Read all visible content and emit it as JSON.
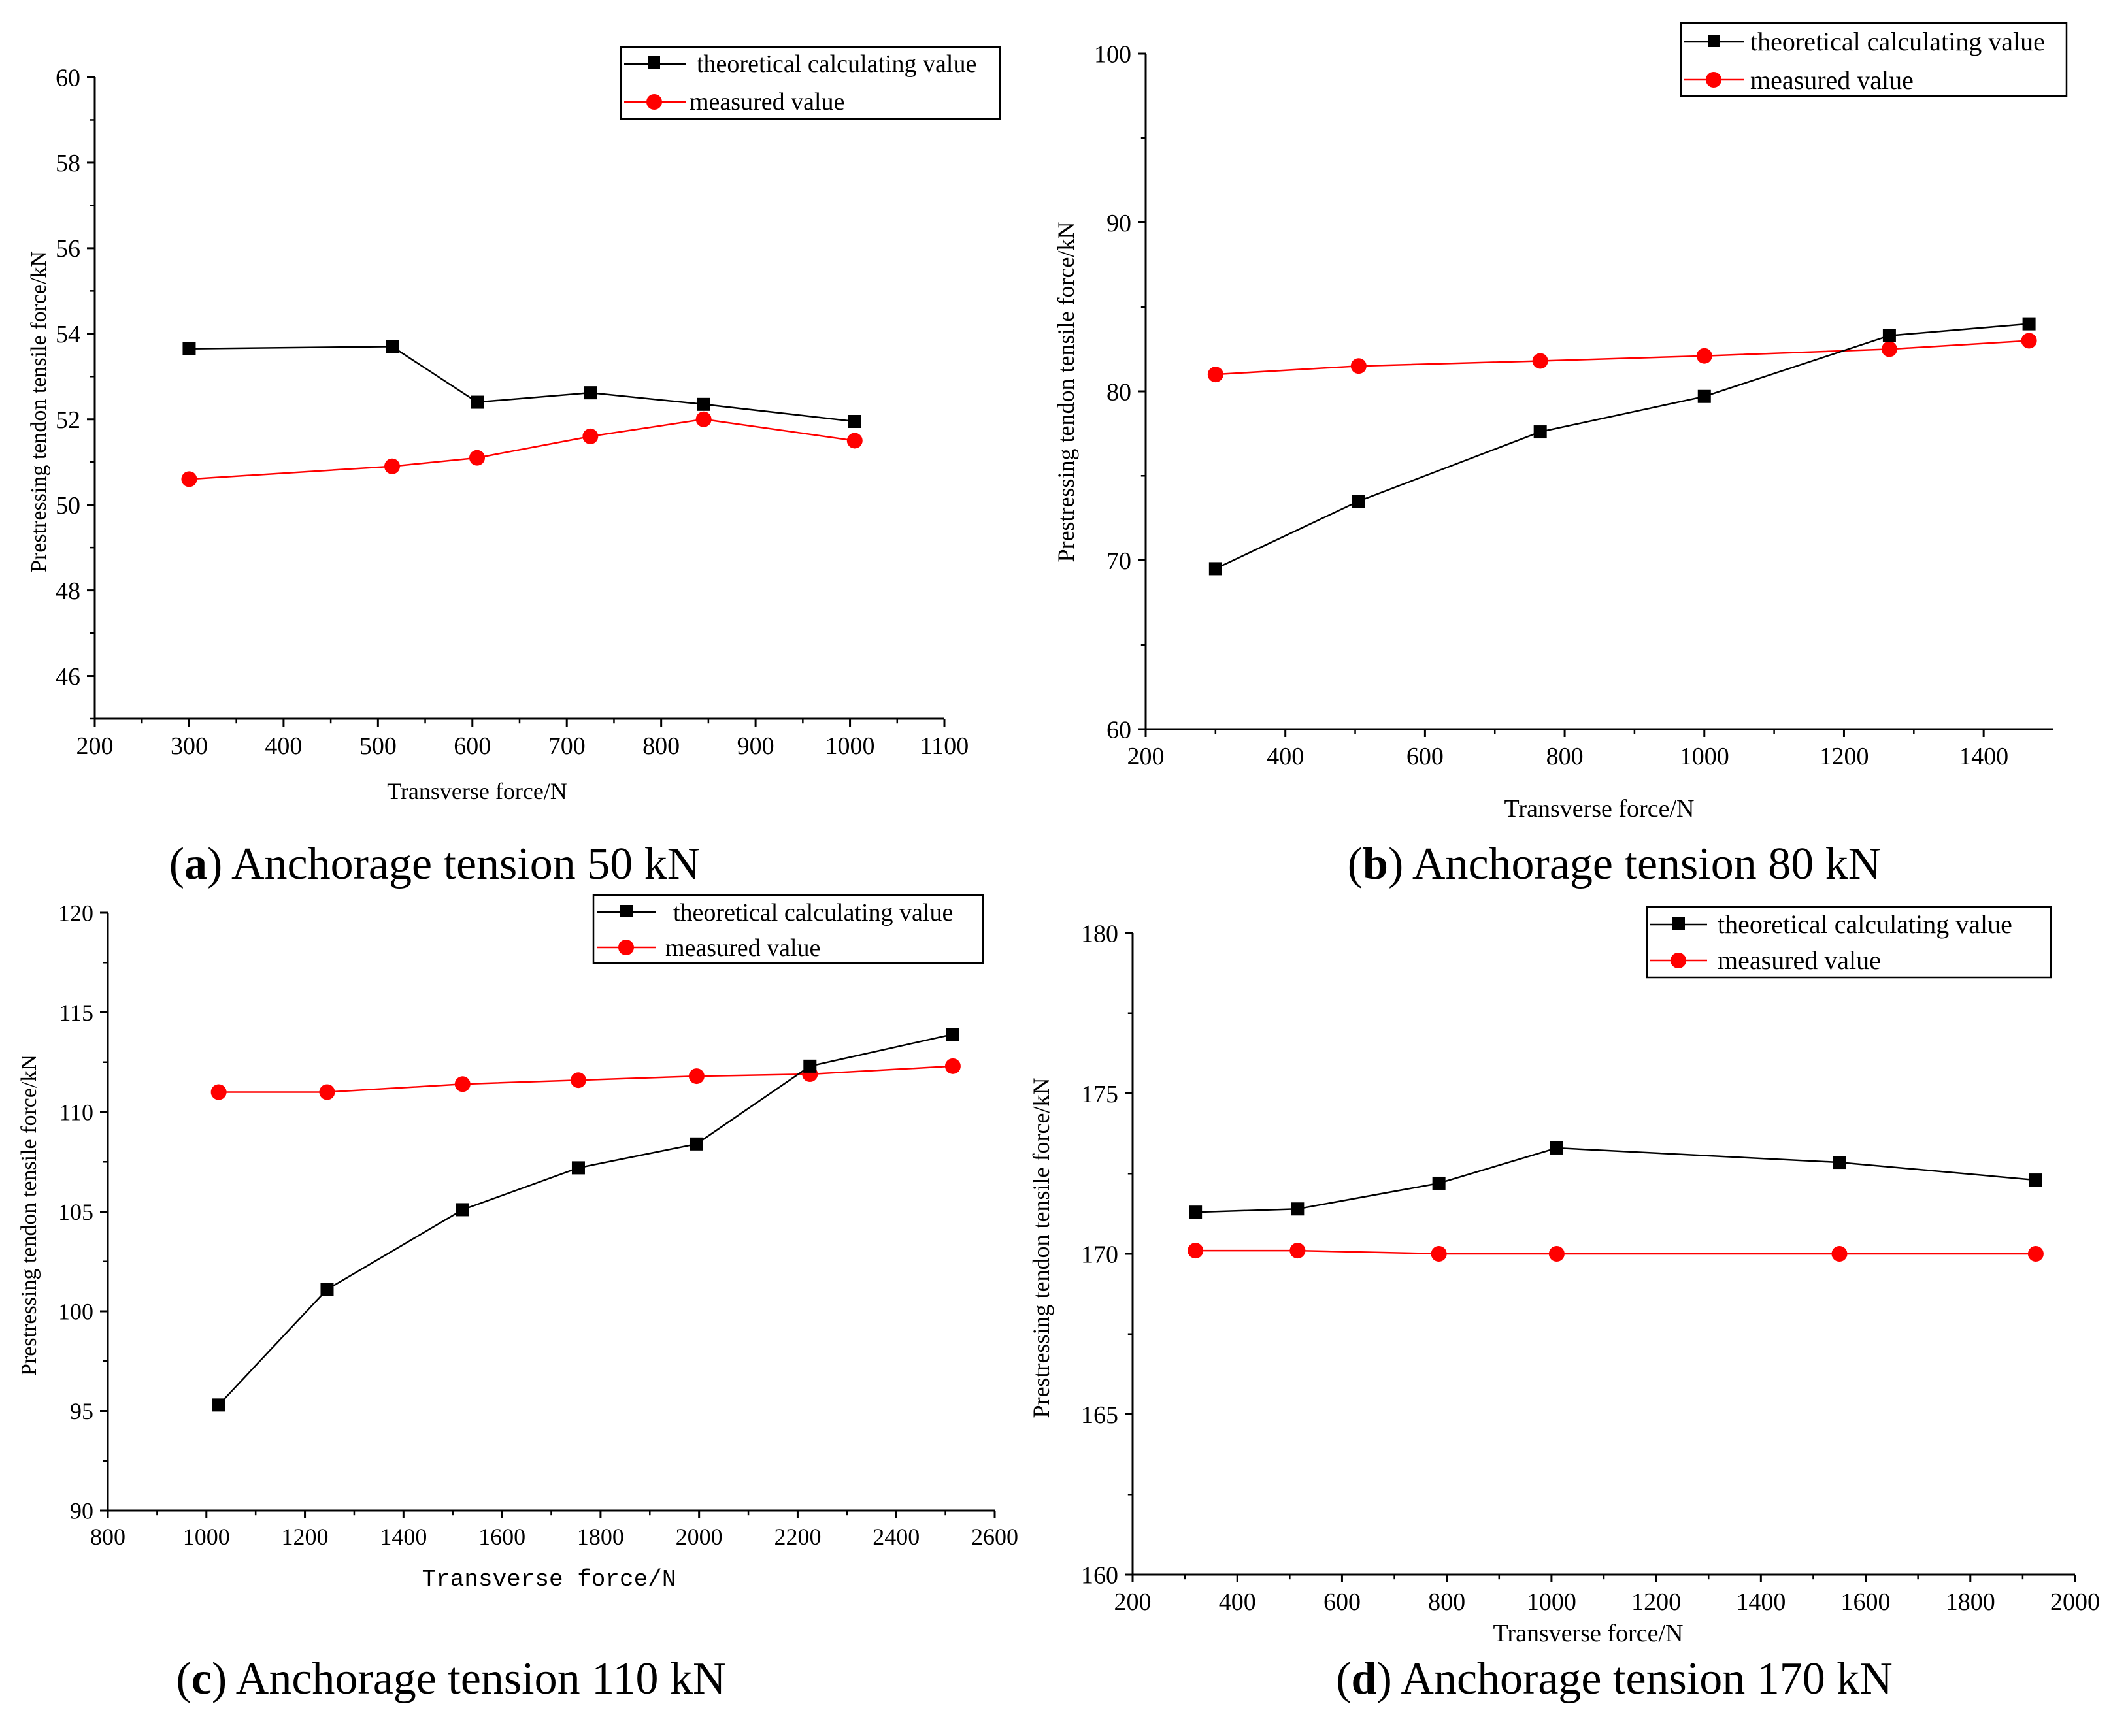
{
  "colors": {
    "theoretical": "#000000",
    "measured": "#ff0000",
    "axis": "#000000",
    "background": "#ffffff"
  },
  "chart_data": [
    {
      "type": "line",
      "panel_label": "a",
      "caption": "Anchorage tension 50 kN",
      "xlabel": "Transverse force/N",
      "ylabel": "Prestressing tendon tensile force/kN",
      "xlim": [
        200,
        1100
      ],
      "ylim": [
        45,
        60
      ],
      "xticks": [
        200,
        300,
        400,
        500,
        600,
        700,
        800,
        900,
        1000,
        1100
      ],
      "yticks": [
        46,
        48,
        50,
        52,
        54,
        56,
        58,
        60
      ],
      "legend_position": "top-right",
      "series": [
        {
          "name": "theoretical calculating value",
          "marker": "square",
          "color": "#000000",
          "x": [
            300,
            515,
            605,
            725,
            845,
            1005
          ],
          "y": [
            53.65,
            53.7,
            52.4,
            52.62,
            52.35,
            51.95
          ]
        },
        {
          "name": "measured value",
          "marker": "circle",
          "color": "#ff0000",
          "x": [
            300,
            515,
            605,
            725,
            845,
            1005
          ],
          "y": [
            50.6,
            50.9,
            51.1,
            51.6,
            52.0,
            51.5
          ]
        }
      ]
    },
    {
      "type": "line",
      "panel_label": "b",
      "caption": "Anchorage tension 80 kN",
      "xlabel": "Transverse force/N",
      "ylabel": "Prestressing tendon tensile force/kN",
      "xlim": [
        200,
        1500
      ],
      "ylim": [
        60,
        100
      ],
      "xticks": [
        200,
        400,
        600,
        800,
        1000,
        1200,
        1400
      ],
      "yticks": [
        60,
        70,
        80,
        90,
        100
      ],
      "legend_position": "top-right",
      "series": [
        {
          "name": "theoretical calculating value",
          "marker": "square",
          "color": "#000000",
          "x": [
            300,
            505,
            765,
            1000,
            1265,
            1465
          ],
          "y": [
            69.5,
            73.5,
            77.6,
            79.7,
            83.3,
            84.0
          ]
        },
        {
          "name": "measured value",
          "marker": "circle",
          "color": "#ff0000",
          "x": [
            300,
            505,
            765,
            1000,
            1265,
            1465
          ],
          "y": [
            81.0,
            81.5,
            81.8,
            82.1,
            82.5,
            83.0
          ]
        }
      ]
    },
    {
      "type": "line",
      "panel_label": "c",
      "caption": "Anchorage tension 110 kN",
      "xlabel": "Transverse force/N",
      "ylabel": "Prestressing tendon tensile force/kN",
      "xlim": [
        800,
        2600
      ],
      "ylim": [
        90,
        120
      ],
      "xticks": [
        800,
        1000,
        1200,
        1400,
        1600,
        1800,
        2000,
        2200,
        2400,
        2600
      ],
      "yticks": [
        90,
        95,
        100,
        105,
        110,
        115,
        120
      ],
      "legend_position": "top-right",
      "series": [
        {
          "name": "theoretical calculating value",
          "marker": "square",
          "color": "#000000",
          "x": [
            1025,
            1245,
            1520,
            1755,
            1995,
            2225,
            2515
          ],
          "y": [
            95.3,
            101.1,
            105.1,
            107.2,
            108.4,
            112.3,
            113.9
          ]
        },
        {
          "name": "measured value",
          "marker": "circle",
          "color": "#ff0000",
          "x": [
            1025,
            1245,
            1520,
            1755,
            1995,
            2225,
            2515
          ],
          "y": [
            111.0,
            111.0,
            111.4,
            111.6,
            111.8,
            111.9,
            112.3
          ]
        }
      ]
    },
    {
      "type": "line",
      "panel_label": "d",
      "caption": "Anchorage tension 170 kN",
      "xlabel": "Transverse force/N",
      "ylabel": "Prestressing tendon tensile force/kN",
      "xlim": [
        200,
        2000
      ],
      "ylim": [
        160,
        180
      ],
      "xticks": [
        200,
        400,
        600,
        800,
        1000,
        1200,
        1400,
        1600,
        1800,
        2000
      ],
      "yticks": [
        160,
        165,
        170,
        175,
        180
      ],
      "legend_position": "top-right",
      "series": [
        {
          "name": "theoretical calculating value",
          "marker": "square",
          "color": "#000000",
          "x": [
            320,
            515,
            785,
            1010,
            1550,
            1925
          ],
          "y": [
            171.3,
            171.4,
            172.2,
            173.3,
            172.85,
            172.3
          ]
        },
        {
          "name": "measured value",
          "marker": "circle",
          "color": "#ff0000",
          "x": [
            320,
            515,
            785,
            1010,
            1550,
            1925
          ],
          "y": [
            170.1,
            170.1,
            170.0,
            170.0,
            170.0,
            170.0
          ]
        }
      ]
    }
  ]
}
